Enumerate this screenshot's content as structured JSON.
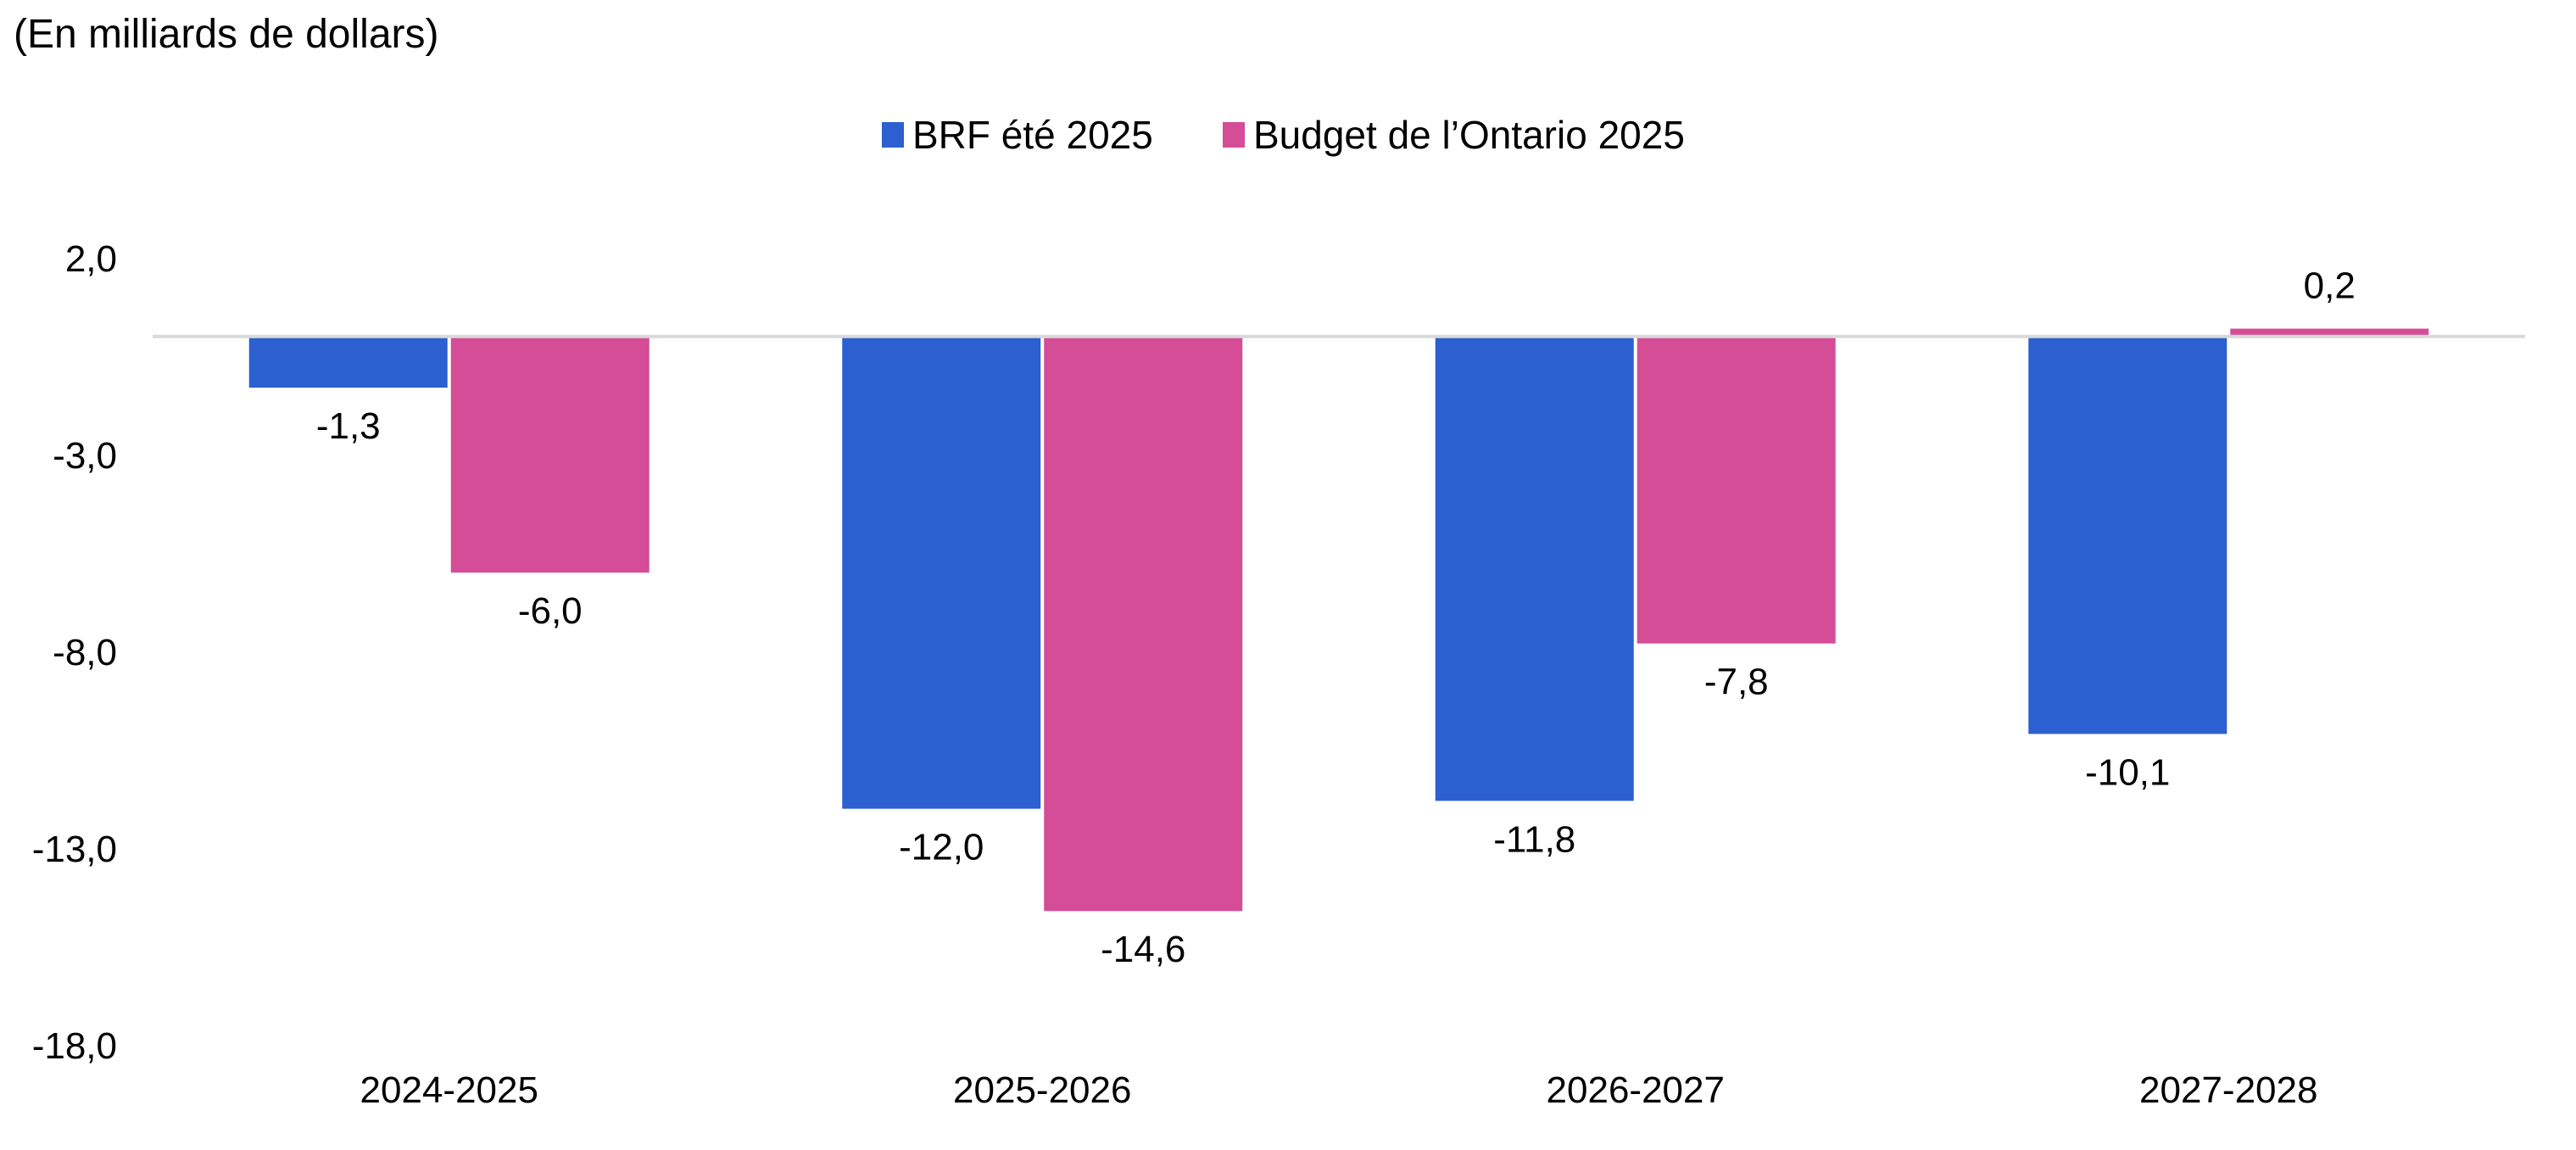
{
  "chart_data": {
    "type": "bar",
    "unit_label": "(En milliards de dollars)",
    "categories": [
      "2024-2025",
      "2025-2026",
      "2026-2027",
      "2027-2028"
    ],
    "series": [
      {
        "name": "BRF été 2025",
        "color": "#2C5FCF",
        "values": [
          -1.3,
          -12.0,
          -11.8,
          -10.1
        ]
      },
      {
        "name": "Budget de l’Ontario 2025",
        "color": "#D44D96",
        "values": [
          -6.0,
          -14.6,
          -7.8,
          0.2
        ]
      }
    ],
    "data_labels": [
      [
        "-1,3",
        "-12,0",
        "-11,8",
        "-10,1"
      ],
      [
        "-6,0",
        "-14,6",
        "-7,8",
        "0,2"
      ]
    ],
    "yticks": [
      2.0,
      -3.0,
      -8.0,
      -13.0,
      -18.0
    ],
    "ytick_labels": [
      "2,0",
      "-3,0",
      "-8,0",
      "-13,0",
      "-18,0"
    ],
    "ylim": [
      -18.0,
      2.0
    ],
    "legend_position": "top-center",
    "grid": false,
    "zero_line_color": "#D9D9D9"
  }
}
